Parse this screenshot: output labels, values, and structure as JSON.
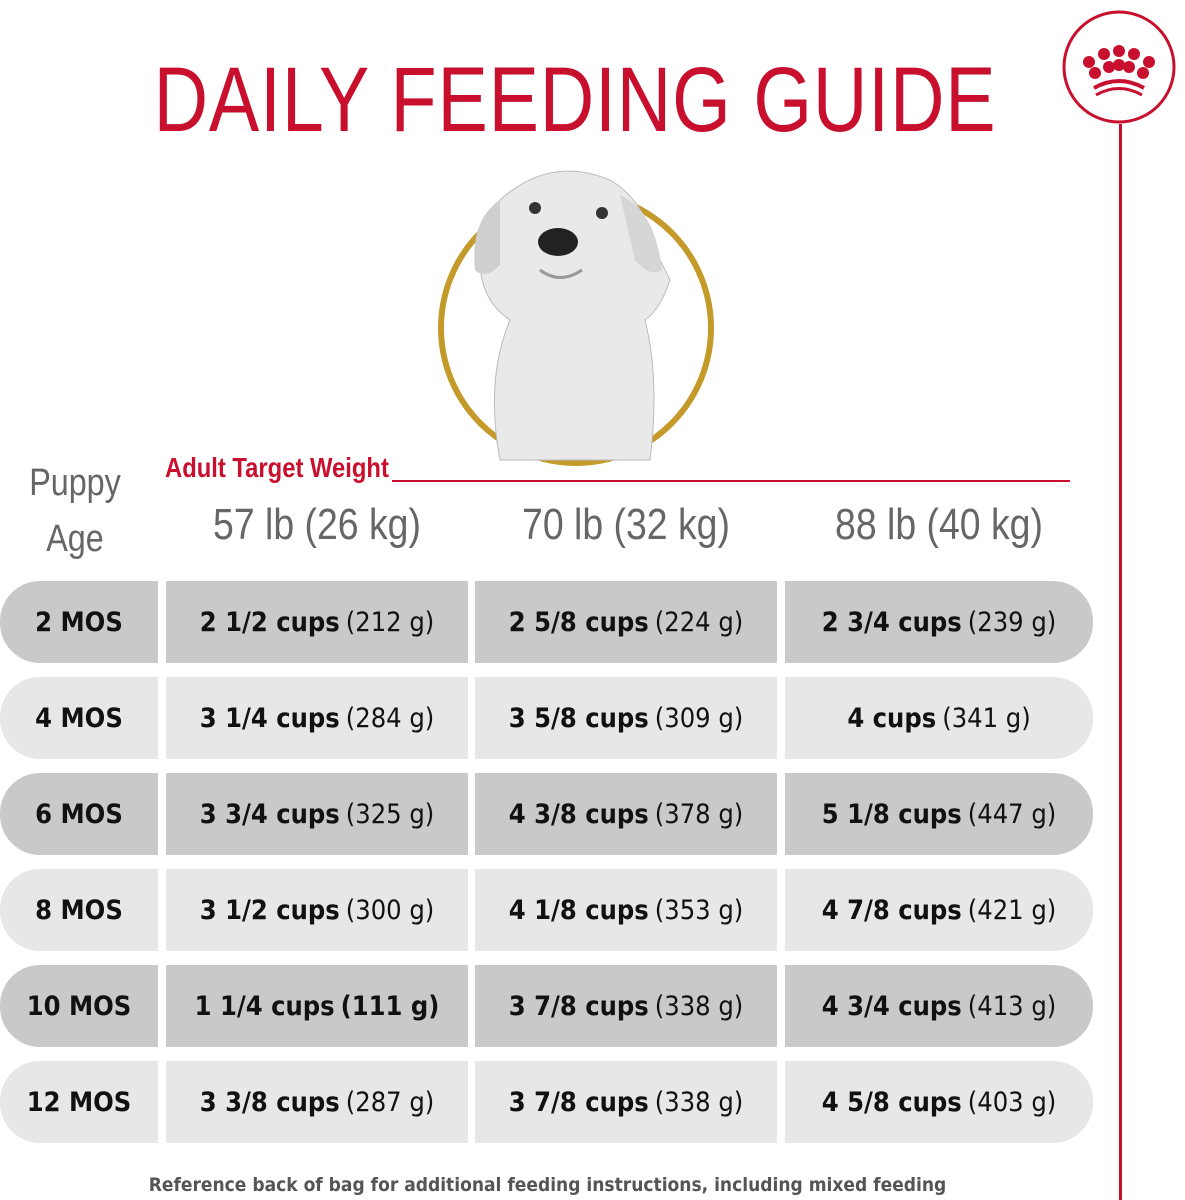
{
  "title": "DAILY FEEDING GUIDE",
  "brand_icon": "crown-icon",
  "colors": {
    "accent": "#c8102e",
    "gold": "#c49a2a",
    "row_dark": "#c9c9c9",
    "row_light": "#e7e7e7"
  },
  "table": {
    "age_header_line1": "Puppy",
    "age_header_line2": "Age",
    "weight_label": "Adult Target Weight",
    "weights": [
      "57 lb (26 kg)",
      "70 lb (32 kg)",
      "88 lb (40 kg)"
    ],
    "rows": [
      {
        "age": "2 MOS",
        "cells": [
          {
            "cups": "2 1/2 cups",
            "grams": "(212 g)"
          },
          {
            "cups": "2 5/8 cups",
            "grams": "(224 g)"
          },
          {
            "cups": "2 3/4 cups",
            "grams": "(239 g)"
          }
        ]
      },
      {
        "age": "4 MOS",
        "cells": [
          {
            "cups": "3 1/4 cups",
            "grams": "(284 g)"
          },
          {
            "cups": "3 5/8 cups",
            "grams": "(309 g)"
          },
          {
            "cups": "4 cups",
            "grams": "(341 g)"
          }
        ]
      },
      {
        "age": "6 MOS",
        "cells": [
          {
            "cups": "3 3/4 cups",
            "grams": "(325 g)"
          },
          {
            "cups": "4 3/8 cups",
            "grams": "(378 g)"
          },
          {
            "cups": "5 1/8 cups",
            "grams": "(447 g)"
          }
        ]
      },
      {
        "age": "8 MOS",
        "cells": [
          {
            "cups": "3 1/2 cups",
            "grams": "(300 g)"
          },
          {
            "cups": "4 1/8 cups",
            "grams": "(353 g)"
          },
          {
            "cups": "4 7/8 cups",
            "grams": "(421 g)"
          }
        ]
      },
      {
        "age": "10 MOS",
        "cells": [
          {
            "cups": "1 1/4 cups",
            "grams": "(111 g)"
          },
          {
            "cups": "3 7/8 cups",
            "grams": "(338 g)"
          },
          {
            "cups": "4 3/4 cups",
            "grams": "(413 g)"
          }
        ]
      },
      {
        "age": "12 MOS",
        "cells": [
          {
            "cups": "3 3/8 cups",
            "grams": "(287 g)"
          },
          {
            "cups": "3 7/8 cups",
            "grams": "(338 g)"
          },
          {
            "cups": "4 5/8 cups",
            "grams": "(403 g)"
          }
        ]
      }
    ]
  },
  "footer": "Reference back of bag for additional feeding instructions, including mixed feeding"
}
